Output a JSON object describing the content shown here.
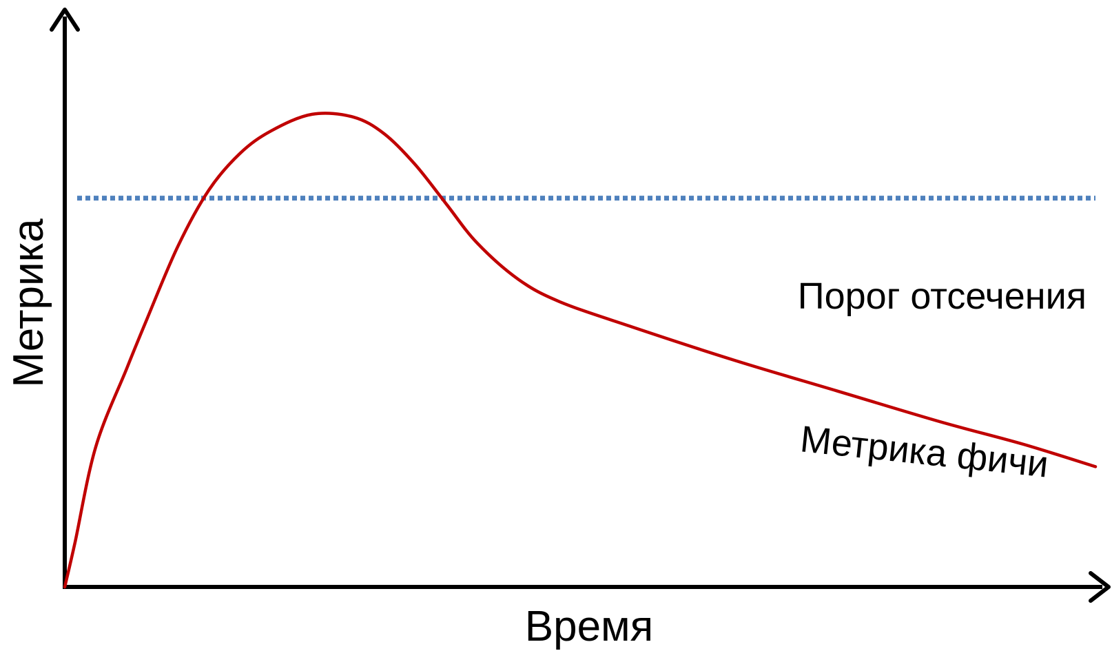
{
  "chart_data": {
    "type": "line",
    "title": "",
    "xlabel": "Время",
    "ylabel": "Метрика",
    "grid": false,
    "legend": "none",
    "xlim": [
      0,
      100
    ],
    "ylim": [
      0,
      100
    ],
    "series": [
      {
        "name": "Метрика фичи",
        "color": "#c00000",
        "x": [
          0,
          1,
          3,
          6,
          8,
          11,
          14,
          17,
          20,
          24,
          28,
          31,
          34,
          37,
          40,
          44,
          48,
          55,
          65,
          75,
          85,
          93,
          100
        ],
        "y": [
          0,
          8,
          25,
          39,
          48,
          61,
          71,
          77.5,
          81.5,
          84.5,
          84,
          81,
          75.5,
          68.5,
          61.5,
          55,
          51,
          46.5,
          40.5,
          35,
          29.5,
          25.5,
          21.5
        ]
      }
    ],
    "threshold": {
      "name": "Порог отсечения",
      "value": 69.5,
      "color": "#4f81bd",
      "style": "dotted"
    }
  }
}
